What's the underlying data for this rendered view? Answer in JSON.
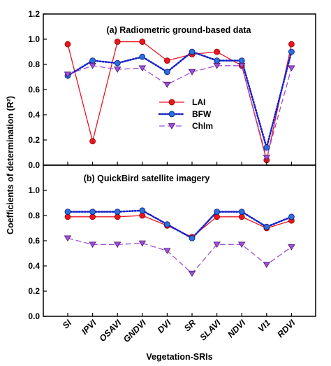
{
  "chart_data": {
    "type": "line",
    "xlabel": "Vegetation-SRIs",
    "ylabel": "Coefficients of determination (R²)",
    "categories": [
      "SI",
      "IPVI",
      "OSAVI",
      "GNDVI",
      "DVI",
      "SR",
      "SLAVI",
      "NDVI",
      "VI1",
      "RDVI"
    ],
    "ylim": [
      0,
      1.2
    ],
    "legend": "inside-center",
    "series_styles": [
      {
        "name": "LAI",
        "color": "#e8161f",
        "dash": "solid",
        "marker": "circle"
      },
      {
        "name": "BFW",
        "color": "#1722c7",
        "dash": "dotted",
        "marker": "circle"
      },
      {
        "name": "Chlm",
        "color": "#a050d8",
        "dash": "dashed",
        "marker": "triangle-down"
      }
    ],
    "panels": [
      {
        "title": "(a) Radiometric ground-based data",
        "yticks": [
          "0.0",
          "0.2",
          "0.4",
          "0.6",
          "0.8",
          "1.0",
          "1.2"
        ],
        "ytick_values": [
          0,
          0.2,
          0.4,
          0.6,
          0.8,
          1.0,
          1.2
        ],
        "series": [
          {
            "name": "LAI",
            "values": [
              0.96,
              0.19,
              0.98,
              0.98,
              0.83,
              0.88,
              0.9,
              0.79,
              0.04,
              0.96
            ]
          },
          {
            "name": "BFW",
            "values": [
              0.71,
              0.83,
              0.81,
              0.86,
              0.74,
              0.9,
              0.83,
              0.83,
              0.14,
              0.9
            ]
          },
          {
            "name": "Chlm",
            "values": [
              0.72,
              0.79,
              0.76,
              0.77,
              0.64,
              0.74,
              0.79,
              0.79,
              0.06,
              0.77
            ]
          }
        ]
      },
      {
        "title": "(b) QuickBird satellite imagery",
        "yticks": [
          "0.0",
          "0.2",
          "0.4",
          "0.6",
          "0.8",
          "1.0"
        ],
        "ytick_values": [
          0,
          0.2,
          0.4,
          0.6,
          0.8,
          1.0
        ],
        "series": [
          {
            "name": "LAI",
            "values": [
              0.79,
              0.79,
              0.79,
              0.8,
              0.72,
              0.63,
              0.79,
              0.79,
              0.7,
              0.76
            ]
          },
          {
            "name": "BFW",
            "values": [
              0.83,
              0.83,
              0.83,
              0.84,
              0.73,
              0.62,
              0.83,
              0.83,
              0.71,
              0.79
            ]
          },
          {
            "name": "Chlm",
            "values": [
              0.62,
              0.57,
              0.57,
              0.58,
              0.52,
              0.34,
              0.57,
              0.57,
              0.41,
              0.55
            ]
          }
        ]
      }
    ]
  }
}
